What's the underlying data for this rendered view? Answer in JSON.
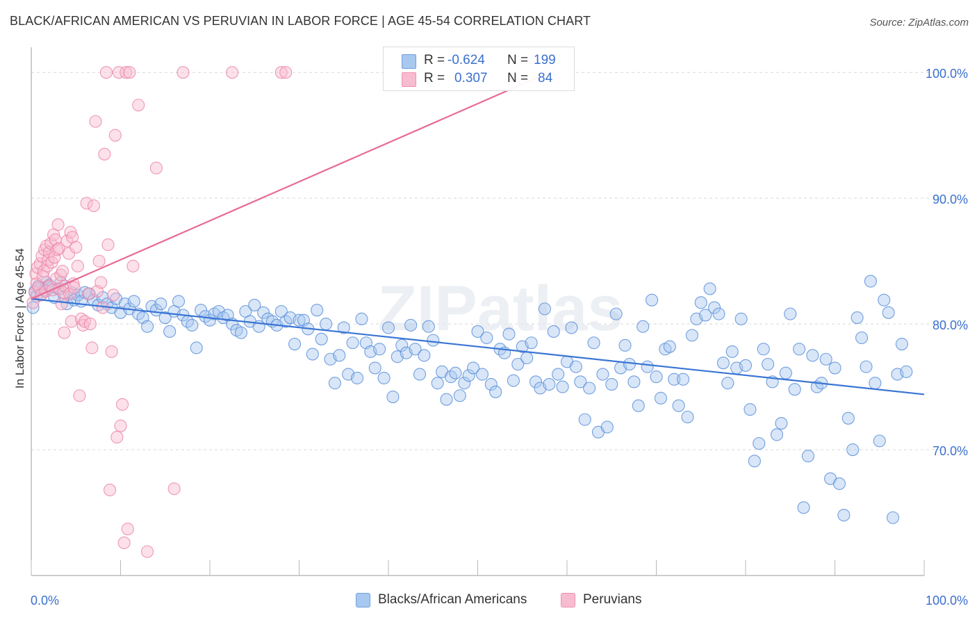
{
  "title": "BLACK/AFRICAN AMERICAN VS PERUVIAN IN LABOR FORCE | AGE 45-54 CORRELATION CHART",
  "source": "Source: ZipAtlas.com",
  "watermark": "ZIPatlas",
  "legend": {
    "rows": [
      {
        "r_label": "R =",
        "r_value": "-0.624",
        "n_label": "N =",
        "n_value": "199",
        "color": "#a8c8f0",
        "border": "#6fa0e0"
      },
      {
        "r_label": "R =",
        "r_value": "0.307",
        "n_label": "N =",
        "n_value": "84",
        "color": "#f8bcd0",
        "border": "#ef8fb0"
      }
    ]
  },
  "bottom_legend": [
    {
      "label": "Blacks/African Americans",
      "color": "#a8c8f0",
      "border": "#6fa0e0"
    },
    {
      "label": "Peruvians",
      "color": "#f8bcd0",
      "border": "#ef8fb0"
    }
  ],
  "chart_data": {
    "type": "scatter",
    "title": "BLACK/AFRICAN AMERICAN VS PERUVIAN IN LABOR FORCE | AGE 45-54 CORRELATION CHART",
    "xlabel": "",
    "ylabel": "In Labor Force | Age 45-54",
    "xlim": [
      0,
      100
    ],
    "ylim": [
      60,
      102
    ],
    "x_tick_labels": [
      "0.0%",
      "100.0%"
    ],
    "y_tick_labels": [
      "70.0%",
      "80.0%",
      "90.0%",
      "100.0%"
    ],
    "y_ticks": [
      70,
      80,
      90,
      100
    ],
    "grid": true,
    "colors": {
      "blue_fill": "#a8c8f0",
      "blue_stroke": "#5b8fd9",
      "blue_line": "#3a75d4",
      "pink_fill": "#f8bcd0",
      "pink_stroke": "#ec86a8",
      "pink_line": "#e86b95",
      "tick_label": "#3a6fcf",
      "grid": "#d8d8d8"
    },
    "series": [
      {
        "name": "Blacks/African Americans",
        "trend": {
          "x": [
            0,
            100
          ],
          "y": [
            82.0,
            74.4
          ]
        },
        "points": [
          [
            0.2,
            81.3
          ],
          [
            0.4,
            82.6
          ],
          [
            0.6,
            82.2
          ],
          [
            0.8,
            83.0
          ],
          [
            1.0,
            82.8
          ],
          [
            1.2,
            82.4
          ],
          [
            1.5,
            82.7
          ],
          [
            1.7,
            83.3
          ],
          [
            2.0,
            83.1
          ],
          [
            2.3,
            82.9
          ],
          [
            2.6,
            82.1
          ],
          [
            3.0,
            82.8
          ],
          [
            3.3,
            83.3
          ],
          [
            3.7,
            82.2
          ],
          [
            4.0,
            81.6
          ],
          [
            4.5,
            82.5
          ],
          [
            4.8,
            81.9
          ],
          [
            5.2,
            82.3
          ],
          [
            5.6,
            81.8
          ],
          [
            6.0,
            82.5
          ],
          [
            6.5,
            82.4
          ],
          [
            7.0,
            81.9
          ],
          [
            7.5,
            81.5
          ],
          [
            8.0,
            82.1
          ],
          [
            8.5,
            81.6
          ],
          [
            9.0,
            81.3
          ],
          [
            9.5,
            82.0
          ],
          [
            10.0,
            80.9
          ],
          [
            10.5,
            81.6
          ],
          [
            11.0,
            81.2
          ],
          [
            11.5,
            81.8
          ],
          [
            12.0,
            80.8
          ],
          [
            12.5,
            80.5
          ],
          [
            13.0,
            79.8
          ],
          [
            13.5,
            81.4
          ],
          [
            14.0,
            81.1
          ],
          [
            14.5,
            81.6
          ],
          [
            15.0,
            80.5
          ],
          [
            15.5,
            79.4
          ],
          [
            16.0,
            81.0
          ],
          [
            16.5,
            81.8
          ],
          [
            17.0,
            80.7
          ],
          [
            17.5,
            80.2
          ],
          [
            18.0,
            79.9
          ],
          [
            18.5,
            78.1
          ],
          [
            19.0,
            81.1
          ],
          [
            19.5,
            80.6
          ],
          [
            20.0,
            80.3
          ],
          [
            20.5,
            80.8
          ],
          [
            21.0,
            81.0
          ],
          [
            21.5,
            80.5
          ],
          [
            22.0,
            80.7
          ],
          [
            22.5,
            80.0
          ],
          [
            23.0,
            79.5
          ],
          [
            23.5,
            79.3
          ],
          [
            24.0,
            81.0
          ],
          [
            24.5,
            80.2
          ],
          [
            25.0,
            81.5
          ],
          [
            25.5,
            79.8
          ],
          [
            26.0,
            80.9
          ],
          [
            26.5,
            80.4
          ],
          [
            27.0,
            80.2
          ],
          [
            27.5,
            79.9
          ],
          [
            28.0,
            81.0
          ],
          [
            28.5,
            80.2
          ],
          [
            29.0,
            80.5
          ],
          [
            29.5,
            78.4
          ],
          [
            30.0,
            80.3
          ],
          [
            30.5,
            80.3
          ],
          [
            31.0,
            79.6
          ],
          [
            31.5,
            77.6
          ],
          [
            32.0,
            81.1
          ],
          [
            32.5,
            78.8
          ],
          [
            33.0,
            80.0
          ],
          [
            33.5,
            77.2
          ],
          [
            34.0,
            75.3
          ],
          [
            34.5,
            77.5
          ],
          [
            35.0,
            79.7
          ],
          [
            35.5,
            76.0
          ],
          [
            36.0,
            78.5
          ],
          [
            36.5,
            75.7
          ],
          [
            37.0,
            80.4
          ],
          [
            37.5,
            78.5
          ],
          [
            38.0,
            77.8
          ],
          [
            38.5,
            76.5
          ],
          [
            39.0,
            78.0
          ],
          [
            39.5,
            75.7
          ],
          [
            40.0,
            79.7
          ],
          [
            40.5,
            74.2
          ],
          [
            41.0,
            77.4
          ],
          [
            41.5,
            78.3
          ],
          [
            42.0,
            77.7
          ],
          [
            42.5,
            79.9
          ],
          [
            43.0,
            78.0
          ],
          [
            43.5,
            76.0
          ],
          [
            44.0,
            77.5
          ],
          [
            44.5,
            79.8
          ],
          [
            45.0,
            78.7
          ],
          [
            45.5,
            75.3
          ],
          [
            46.0,
            76.2
          ],
          [
            46.5,
            74.0
          ],
          [
            47.0,
            75.8
          ],
          [
            47.5,
            76.1
          ],
          [
            48.0,
            74.3
          ],
          [
            48.5,
            75.3
          ],
          [
            49.0,
            75.9
          ],
          [
            49.5,
            76.5
          ],
          [
            50.0,
            79.4
          ],
          [
            50.5,
            76.0
          ],
          [
            51.0,
            78.9
          ],
          [
            51.5,
            75.2
          ],
          [
            52.0,
            74.6
          ],
          [
            52.5,
            78.0
          ],
          [
            53.0,
            77.7
          ],
          [
            53.5,
            79.2
          ],
          [
            54.0,
            75.5
          ],
          [
            54.5,
            76.8
          ],
          [
            55.0,
            78.2
          ],
          [
            55.5,
            77.3
          ],
          [
            56.0,
            78.5
          ],
          [
            56.5,
            75.4
          ],
          [
            57.0,
            74.9
          ],
          [
            57.5,
            81.2
          ],
          [
            58.0,
            75.2
          ],
          [
            58.5,
            79.4
          ],
          [
            59.0,
            76.0
          ],
          [
            59.5,
            75.0
          ],
          [
            60.0,
            77.0
          ],
          [
            60.5,
            79.7
          ],
          [
            61.0,
            76.6
          ],
          [
            61.5,
            75.4
          ],
          [
            62.0,
            72.4
          ],
          [
            62.5,
            74.9
          ],
          [
            63.0,
            78.5
          ],
          [
            63.5,
            71.4
          ],
          [
            64.0,
            76.0
          ],
          [
            64.5,
            71.8
          ],
          [
            65.0,
            75.2
          ],
          [
            65.5,
            80.8
          ],
          [
            66.0,
            76.5
          ],
          [
            66.5,
            78.3
          ],
          [
            67.0,
            76.8
          ],
          [
            67.5,
            75.4
          ],
          [
            68.0,
            73.5
          ],
          [
            68.5,
            79.8
          ],
          [
            69.0,
            76.6
          ],
          [
            69.5,
            81.9
          ],
          [
            70.0,
            75.8
          ],
          [
            70.5,
            74.1
          ],
          [
            71.0,
            78.0
          ],
          [
            71.5,
            78.2
          ],
          [
            72.0,
            75.6
          ],
          [
            72.5,
            73.5
          ],
          [
            73.0,
            75.6
          ],
          [
            73.5,
            72.6
          ],
          [
            74.0,
            79.1
          ],
          [
            74.5,
            80.4
          ],
          [
            75.0,
            81.7
          ],
          [
            75.5,
            80.7
          ],
          [
            76.0,
            82.8
          ],
          [
            76.5,
            81.3
          ],
          [
            77.0,
            80.8
          ],
          [
            77.5,
            76.9
          ],
          [
            78.0,
            75.3
          ],
          [
            78.5,
            77.8
          ],
          [
            79.0,
            76.5
          ],
          [
            79.5,
            80.4
          ],
          [
            80.0,
            76.7
          ],
          [
            80.5,
            73.2
          ],
          [
            81.0,
            69.1
          ],
          [
            81.5,
            70.5
          ],
          [
            82.0,
            78.0
          ],
          [
            82.5,
            76.8
          ],
          [
            83.0,
            75.4
          ],
          [
            83.5,
            71.2
          ],
          [
            84.0,
            72.1
          ],
          [
            84.5,
            76.1
          ],
          [
            85.0,
            80.8
          ],
          [
            85.5,
            74.8
          ],
          [
            86.0,
            78.0
          ],
          [
            86.5,
            65.4
          ],
          [
            87.0,
            69.5
          ],
          [
            87.5,
            77.5
          ],
          [
            88.0,
            75.0
          ],
          [
            88.5,
            75.3
          ],
          [
            89.0,
            77.2
          ],
          [
            89.5,
            67.7
          ],
          [
            90.0,
            76.5
          ],
          [
            90.5,
            67.3
          ],
          [
            91.0,
            64.8
          ],
          [
            91.5,
            72.5
          ],
          [
            92.0,
            70.0
          ],
          [
            92.5,
            80.5
          ],
          [
            93.0,
            78.9
          ],
          [
            93.5,
            76.6
          ],
          [
            94.0,
            83.4
          ],
          [
            94.5,
            75.3
          ],
          [
            95.0,
            70.7
          ],
          [
            95.5,
            81.9
          ],
          [
            96.0,
            80.9
          ],
          [
            96.5,
            64.6
          ],
          [
            97.0,
            76.0
          ],
          [
            97.5,
            78.4
          ],
          [
            98.0,
            76.2
          ]
        ]
      },
      {
        "name": "Peruvians",
        "trend": {
          "x": [
            0,
            58
          ],
          "y": [
            82.0,
            100.0
          ]
        },
        "points": [
          [
            0.2,
            81.7
          ],
          [
            0.4,
            82.5
          ],
          [
            0.5,
            84.0
          ],
          [
            0.6,
            83.2
          ],
          [
            0.7,
            84.5
          ],
          [
            0.8,
            82.9
          ],
          [
            1.0,
            84.8
          ],
          [
            1.1,
            82.3
          ],
          [
            1.2,
            85.4
          ],
          [
            1.3,
            83.8
          ],
          [
            1.4,
            84.2
          ],
          [
            1.5,
            85.9
          ],
          [
            1.6,
            82.6
          ],
          [
            1.7,
            86.2
          ],
          [
            1.8,
            84.6
          ],
          [
            1.9,
            85.1
          ],
          [
            2.0,
            85.7
          ],
          [
            2.1,
            83.0
          ],
          [
            2.2,
            86.4
          ],
          [
            2.3,
            84.9
          ],
          [
            2.4,
            82.7
          ],
          [
            2.5,
            87.1
          ],
          [
            2.6,
            85.3
          ],
          [
            2.7,
            86.7
          ],
          [
            2.8,
            83.6
          ],
          [
            2.9,
            85.9
          ],
          [
            3.0,
            87.9
          ],
          [
            3.1,
            86.0
          ],
          [
            3.2,
            82.8
          ],
          [
            3.3,
            83.9
          ],
          [
            3.4,
            81.6
          ],
          [
            3.5,
            84.2
          ],
          [
            3.6,
            82.5
          ],
          [
            3.7,
            79.3
          ],
          [
            3.8,
            83.0
          ],
          [
            4.0,
            86.6
          ],
          [
            4.2,
            85.6
          ],
          [
            4.3,
            82.4
          ],
          [
            4.4,
            87.3
          ],
          [
            4.5,
            80.2
          ],
          [
            4.6,
            86.9
          ],
          [
            4.7,
            83.2
          ],
          [
            4.8,
            82.9
          ],
          [
            5.0,
            86.1
          ],
          [
            5.2,
            84.6
          ],
          [
            5.4,
            74.3
          ],
          [
            5.6,
            80.4
          ],
          [
            5.8,
            79.9
          ],
          [
            6.0,
            80.2
          ],
          [
            6.2,
            89.6
          ],
          [
            6.4,
            82.4
          ],
          [
            6.6,
            80.0
          ],
          [
            6.8,
            78.1
          ],
          [
            7.0,
            89.4
          ],
          [
            7.2,
            96.1
          ],
          [
            7.4,
            82.6
          ],
          [
            7.6,
            85.0
          ],
          [
            7.8,
            83.3
          ],
          [
            8.0,
            81.3
          ],
          [
            8.2,
            93.5
          ],
          [
            8.4,
            100.0
          ],
          [
            8.6,
            86.3
          ],
          [
            8.8,
            66.8
          ],
          [
            9.0,
            77.8
          ],
          [
            9.2,
            82.3
          ],
          [
            9.4,
            95.0
          ],
          [
            9.6,
            71.0
          ],
          [
            9.8,
            100.0
          ],
          [
            10.0,
            71.9
          ],
          [
            10.2,
            73.6
          ],
          [
            10.4,
            62.6
          ],
          [
            10.6,
            100.0
          ],
          [
            10.8,
            63.7
          ],
          [
            11.0,
            100.0
          ],
          [
            11.4,
            84.6
          ],
          [
            12.0,
            97.4
          ],
          [
            13.0,
            61.9
          ],
          [
            14.0,
            92.4
          ],
          [
            16.0,
            66.9
          ],
          [
            17.0,
            100.0
          ],
          [
            22.5,
            100.0
          ],
          [
            28.0,
            100.0
          ],
          [
            28.5,
            100.0
          ],
          [
            58.0,
            100.0
          ]
        ]
      }
    ]
  }
}
